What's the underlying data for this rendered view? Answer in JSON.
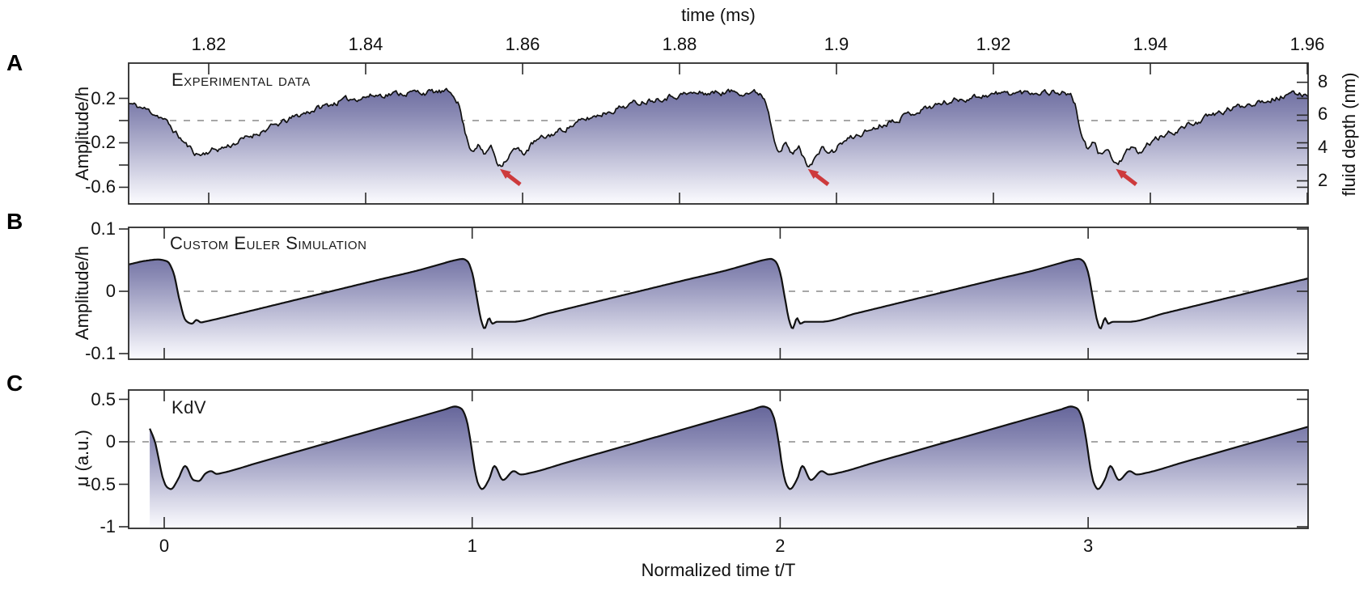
{
  "figure": {
    "bg": "#ffffff"
  },
  "colors": {
    "fill_top": "#55558e",
    "fill_upper_mid": "#8787b2",
    "fill_lower_mid": "#c6c6dc",
    "fill_bottom": "#fcfcff",
    "curve": "#111111",
    "dashed_zero_line": "#8a8a8a",
    "axis_box": "#2a2a2a",
    "arrow_red": "#cd3a3c",
    "text": "#111111"
  },
  "top_axis": {
    "title": "time (ms)",
    "tick_labels": [
      "1.82",
      "1.84",
      "1.86",
      "1.88",
      "1.9",
      "1.92",
      "1.94",
      "1.96"
    ]
  },
  "bottom_axis": {
    "title": "Normalized time t/T",
    "tick_labels": [
      "0",
      "1",
      "2",
      "3"
    ],
    "tick_values": [
      0,
      1,
      2,
      3
    ]
  },
  "panels": [
    {
      "letter": "A",
      "title": "Experimental data",
      "ylabel": "Amplitude/h",
      "ytick_values": [
        0.2,
        0,
        -0.2,
        -0.4,
        -0.6
      ],
      "ytick_labels": [
        "0.2",
        "",
        "-0.2",
        "",
        "-0.6"
      ],
      "right_axis": {
        "label": "fluid depth (nm)",
        "tick_labels": [
          "8",
          "6",
          "4",
          "2"
        ]
      }
    },
    {
      "letter": "B",
      "title": "Custom Euler Simulation",
      "ylabel": "Amplitude/h",
      "ytick_values": [
        0.1,
        0,
        -0.1
      ],
      "ytick_labels": [
        "0.1",
        "0",
        "-0.1"
      ]
    },
    {
      "letter": "C",
      "title": "KdV",
      "ylabel": "u (a.u.)",
      "ytick_values": [
        0.5,
        0,
        -0.5,
        -1
      ],
      "ytick_labels": [
        "0.5",
        "0",
        "-0.5",
        "-1"
      ]
    }
  ],
  "chart_data": [
    {
      "panel": "A",
      "type": "area",
      "title": "Experimental data",
      "ylabel": "Amplitude/h",
      "ylim": [
        -0.75,
        0.517
      ],
      "x_normalized_range": [
        -0.116,
        3.714
      ],
      "top_axis_ticks_ms": [
        1.82,
        1.84,
        1.86,
        1.88,
        1.9,
        1.92,
        1.94,
        1.96
      ],
      "yticks": [
        0.2,
        0,
        -0.2,
        -0.4,
        -0.6
      ],
      "right_axis_depth_ticks_nm": [
        8,
        6,
        4,
        2
      ],
      "zero_dashed_line_at": 0,
      "series": {
        "name": "experimental amplitude",
        "initial_keypoints": [
          [
            -0.116,
            0.155
          ],
          [
            -0.06,
            0.1
          ],
          [
            -0.01,
            0.03
          ],
          [
            0.04,
            -0.12
          ],
          [
            0.08,
            -0.24
          ],
          [
            0.115,
            -0.305
          ],
          [
            0.15,
            -0.27
          ],
          [
            0.19,
            -0.245
          ],
          [
            0.24,
            -0.19
          ],
          [
            0.3,
            -0.115
          ],
          [
            0.37,
            -0.035
          ],
          [
            0.44,
            0.05
          ],
          [
            0.52,
            0.13
          ],
          [
            0.6,
            0.19
          ],
          [
            0.68,
            0.225
          ],
          [
            0.76,
            0.245
          ],
          [
            0.84,
            0.255
          ],
          [
            0.9,
            0.255
          ],
          [
            0.935,
            0.245
          ]
        ],
        "period_keypoints": [
          [
            0.955,
            0.16
          ],
          [
            0.97,
            -0.02
          ],
          [
            0.985,
            -0.18
          ],
          [
            1.0,
            -0.26
          ],
          [
            1.018,
            -0.215
          ],
          [
            1.04,
            -0.31
          ],
          [
            1.058,
            -0.235
          ],
          [
            1.088,
            -0.39
          ],
          [
            1.115,
            -0.33
          ],
          [
            1.14,
            -0.26
          ],
          [
            1.165,
            -0.29
          ],
          [
            1.2,
            -0.2
          ],
          [
            1.25,
            -0.135
          ],
          [
            1.31,
            -0.06
          ],
          [
            1.38,
            0.02
          ],
          [
            1.46,
            0.1
          ],
          [
            1.54,
            0.165
          ],
          [
            1.62,
            0.21
          ],
          [
            1.7,
            0.24
          ],
          [
            1.78,
            0.25
          ],
          [
            1.86,
            0.26
          ],
          [
            1.9,
            0.255
          ],
          [
            1.935,
            0.245
          ]
        ],
        "period": 1,
        "repeats": 3,
        "noise_amp": 0.055,
        "noise_seed": 11
      },
      "arrows": [
        {
          "tip": [
            1.09,
            -0.435
          ],
          "tail": [
            1.156,
            -0.575
          ]
        },
        {
          "tip": [
            2.09,
            -0.435
          ],
          "tail": [
            2.156,
            -0.575
          ]
        },
        {
          "tip": [
            3.09,
            -0.435
          ],
          "tail": [
            3.156,
            -0.575
          ]
        }
      ]
    },
    {
      "panel": "B",
      "type": "area",
      "title": "Custom Euler Simulation",
      "ylabel": "Amplitude/h",
      "ylim": [
        -0.109,
        0.103
      ],
      "x_normalized_range": [
        -0.116,
        3.714
      ],
      "xticks": [
        0,
        1,
        2,
        3
      ],
      "yticks": [
        0.1,
        0,
        -0.1
      ],
      "zero_dashed_line_at": 0,
      "series": {
        "name": "Euler simulation amplitude",
        "initial_keypoints": [
          [
            -0.116,
            0.043
          ],
          [
            -0.06,
            0.049
          ],
          [
            -0.02,
            0.051
          ],
          [
            0.01,
            0.048
          ],
          [
            0.03,
            0.03
          ],
          [
            0.05,
            -0.015
          ],
          [
            0.07,
            -0.047
          ],
          [
            0.09,
            -0.052
          ],
          [
            0.105,
            -0.046
          ],
          [
            0.12,
            -0.05
          ],
          [
            0.13,
            -0.049
          ]
        ],
        "period_keypoints": [
          [
            0.25,
            -0.035
          ],
          [
            0.4,
            -0.017
          ],
          [
            0.55,
            0.001
          ],
          [
            0.7,
            0.019
          ],
          [
            0.82,
            0.033
          ],
          [
            0.9,
            0.044
          ],
          [
            0.945,
            0.05
          ],
          [
            0.97,
            0.052
          ],
          [
            0.985,
            0.048
          ],
          [
            1.0,
            0.03
          ],
          [
            1.015,
            -0.01
          ],
          [
            1.03,
            -0.048
          ],
          [
            1.04,
            -0.06
          ],
          [
            1.055,
            -0.043
          ],
          [
            1.065,
            -0.052
          ],
          [
            1.08,
            -0.049
          ],
          [
            1.13,
            -0.049
          ]
        ],
        "period": 1,
        "repeats": 4,
        "noise_amp": 0,
        "noise_seed": 0
      }
    },
    {
      "panel": "C",
      "type": "area",
      "title": "KdV",
      "ylabel": "u (a.u.)",
      "xlabel": "Normalized time t/T",
      "ylim": [
        -1.02,
        0.61
      ],
      "x_normalized_range": [
        -0.116,
        3.714
      ],
      "xticks": [
        0,
        1,
        2,
        3
      ],
      "yticks": [
        0.5,
        0,
        -0.5,
        -1
      ],
      "zero_dashed_line_at": 0,
      "series": {
        "name": "KdV solution u",
        "initial_keypoints": [
          [
            -0.047,
            0.155
          ],
          [
            -0.03,
            0.0
          ],
          [
            -0.018,
            -0.2
          ],
          [
            -0.005,
            -0.42
          ],
          [
            0.008,
            -0.53
          ],
          [
            0.022,
            -0.557
          ],
          [
            0.045,
            -0.44
          ],
          [
            0.068,
            -0.285
          ],
          [
            0.095,
            -0.45
          ],
          [
            0.112,
            -0.462
          ],
          [
            0.135,
            -0.37
          ],
          [
            0.152,
            -0.345
          ],
          [
            0.17,
            -0.378
          ],
          [
            0.19,
            -0.365
          ]
        ],
        "period_keypoints": [
          [
            0.3,
            -0.251
          ],
          [
            0.45,
            -0.096
          ],
          [
            0.6,
            0.059
          ],
          [
            0.75,
            0.214
          ],
          [
            0.85,
            0.317
          ],
          [
            0.91,
            0.379
          ],
          [
            0.945,
            0.415
          ],
          [
            0.965,
            0.39
          ],
          [
            0.98,
            0.28
          ],
          [
            0.995,
            0.0
          ],
          [
            1.007,
            -0.3
          ],
          [
            1.02,
            -0.5
          ],
          [
            1.032,
            -0.557
          ],
          [
            1.055,
            -0.44
          ],
          [
            1.072,
            -0.285
          ],
          [
            1.1,
            -0.45
          ],
          [
            1.135,
            -0.345
          ],
          [
            1.158,
            -0.385
          ],
          [
            1.19,
            -0.365
          ]
        ],
        "period": 1,
        "repeats": 4,
        "noise_amp": 0,
        "noise_seed": 0
      }
    }
  ]
}
